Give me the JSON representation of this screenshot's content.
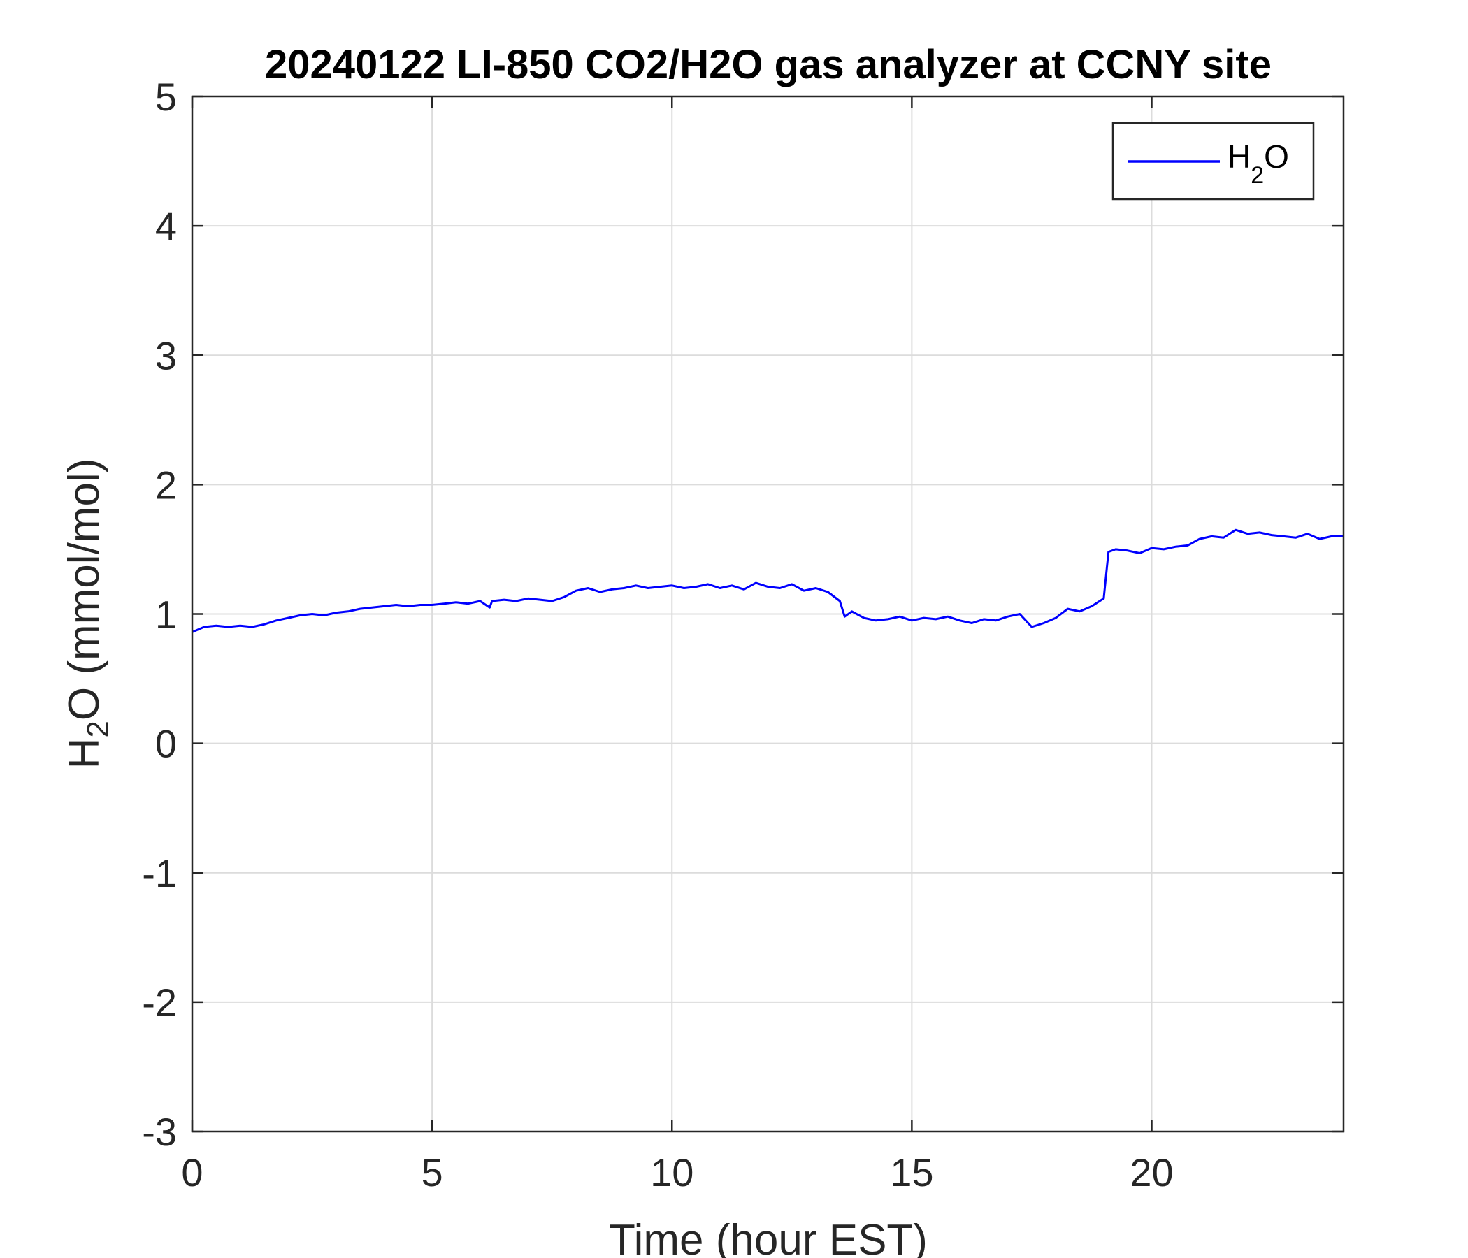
{
  "chart_data": {
    "type": "line",
    "title": "20240122 LI-850 CO2/H2O gas analyzer at CCNY site",
    "xlabel": "Time (hour EST)",
    "ylabel": {
      "main": "H",
      "sub": "2",
      "rest": "O (mmol/mol)"
    },
    "xlim": [
      0,
      24
    ],
    "ylim": [
      -3,
      5
    ],
    "xticks": [
      0,
      5,
      10,
      15,
      20
    ],
    "yticks": [
      -3,
      -2,
      -1,
      0,
      1,
      2,
      3,
      4,
      5
    ],
    "grid": true,
    "legend_position": "top-right",
    "series": [
      {
        "name": {
          "main": "H",
          "sub": "2",
          "rest": "O"
        },
        "color": "#0000ff",
        "x": [
          0,
          0.25,
          0.5,
          0.75,
          1.0,
          1.25,
          1.5,
          1.75,
          2.0,
          2.25,
          2.5,
          2.75,
          3.0,
          3.25,
          3.5,
          3.75,
          4.0,
          4.25,
          4.5,
          4.75,
          5.0,
          5.25,
          5.5,
          5.75,
          6.0,
          6.2,
          6.25,
          6.5,
          6.75,
          7.0,
          7.25,
          7.5,
          7.75,
          8.0,
          8.25,
          8.5,
          8.75,
          9.0,
          9.25,
          9.5,
          9.75,
          10.0,
          10.25,
          10.5,
          10.75,
          11.0,
          11.25,
          11.5,
          11.75,
          12.0,
          12.25,
          12.5,
          12.75,
          13.0,
          13.25,
          13.5,
          13.6,
          13.75,
          14.0,
          14.25,
          14.5,
          14.75,
          15.0,
          15.25,
          15.5,
          15.75,
          16.0,
          16.25,
          16.5,
          16.75,
          17.0,
          17.25,
          17.5,
          17.75,
          18.0,
          18.25,
          18.5,
          18.75,
          19.0,
          19.1,
          19.25,
          19.5,
          19.75,
          20.0,
          20.25,
          20.5,
          20.75,
          21.0,
          21.25,
          21.5,
          21.75,
          22.0,
          22.25,
          22.5,
          22.75,
          23.0,
          23.25,
          23.5,
          23.75,
          24.0
        ],
        "y": [
          0.86,
          0.9,
          0.91,
          0.9,
          0.91,
          0.9,
          0.92,
          0.95,
          0.97,
          0.99,
          1.0,
          0.99,
          1.01,
          1.02,
          1.04,
          1.05,
          1.06,
          1.07,
          1.06,
          1.07,
          1.07,
          1.08,
          1.09,
          1.08,
          1.1,
          1.05,
          1.1,
          1.11,
          1.1,
          1.12,
          1.11,
          1.1,
          1.13,
          1.18,
          1.2,
          1.17,
          1.19,
          1.2,
          1.22,
          1.2,
          1.21,
          1.22,
          1.2,
          1.21,
          1.23,
          1.2,
          1.22,
          1.19,
          1.24,
          1.21,
          1.2,
          1.23,
          1.18,
          1.2,
          1.17,
          1.1,
          0.98,
          1.02,
          0.97,
          0.95,
          0.96,
          0.98,
          0.95,
          0.97,
          0.96,
          0.98,
          0.95,
          0.93,
          0.96,
          0.95,
          0.98,
          1.0,
          0.9,
          0.93,
          0.97,
          1.04,
          1.02,
          1.06,
          1.12,
          1.48,
          1.5,
          1.49,
          1.47,
          1.51,
          1.5,
          1.52,
          1.53,
          1.58,
          1.6,
          1.59,
          1.65,
          1.62,
          1.63,
          1.61,
          1.6,
          1.59,
          1.62,
          1.58,
          1.6,
          1.6
        ]
      }
    ]
  }
}
